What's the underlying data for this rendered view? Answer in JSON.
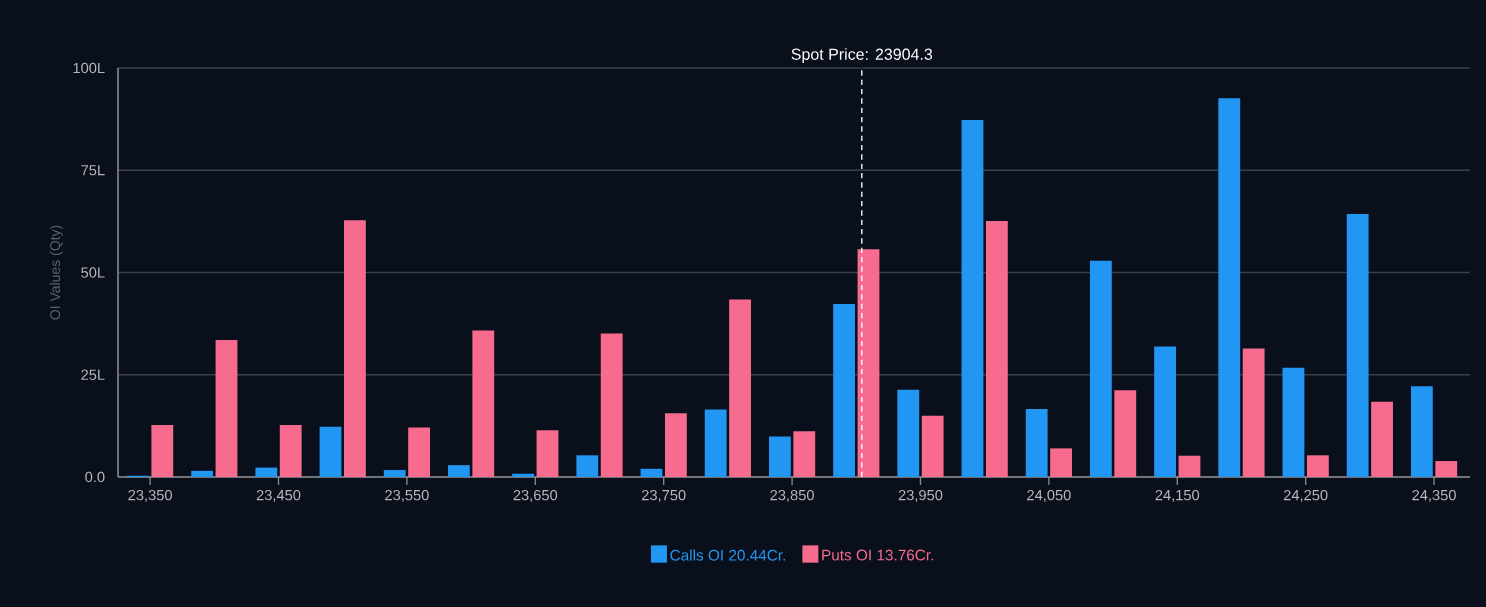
{
  "chart_data": {
    "type": "bar",
    "ylabel": "OI Values (Qty)",
    "x": [
      23350,
      23400,
      23450,
      23500,
      23550,
      23600,
      23650,
      23700,
      23750,
      23800,
      23850,
      23900,
      23950,
      24000,
      24050,
      24100,
      24150,
      24200,
      24250,
      24300,
      24350
    ],
    "series": [
      {
        "name": "Calls OI 20.44Cr.",
        "color": "#2196f3",
        "values": [
          0.3,
          1.5,
          2.3,
          12.3,
          1.7,
          2.9,
          0.8,
          5.3,
          2.0,
          16.5,
          9.9,
          42.3,
          21.3,
          87.3,
          16.6,
          52.9,
          31.9,
          92.6,
          26.7,
          64.3,
          22.2
        ]
      },
      {
        "name": "Puts OI 13.76Cr.",
        "color": "#f76b8f",
        "values": [
          12.7,
          33.5,
          12.7,
          62.8,
          12.1,
          35.8,
          11.4,
          35.1,
          15.6,
          43.4,
          11.2,
          55.7,
          15.0,
          62.6,
          7.0,
          21.2,
          5.2,
          31.4,
          5.3,
          18.4,
          3.9
        ]
      }
    ],
    "xlim": [
      23325,
      24378
    ],
    "xticks": [
      {
        "value": 23350,
        "label": "23,350"
      },
      {
        "value": 23450,
        "label": "23,450"
      },
      {
        "value": 23550,
        "label": "23,550"
      },
      {
        "value": 23650,
        "label": "23,650"
      },
      {
        "value": 23750,
        "label": "23,750"
      },
      {
        "value": 23850,
        "label": "23,850"
      },
      {
        "value": 23950,
        "label": "23,950"
      },
      {
        "value": 24050,
        "label": "24,050"
      },
      {
        "value": 24150,
        "label": "24,150"
      },
      {
        "value": 24250,
        "label": "24,250"
      },
      {
        "value": 24350,
        "label": "24,350"
      }
    ],
    "ylim": [
      0,
      100
    ],
    "yticks": [
      {
        "value": 0,
        "label": "0.0"
      },
      {
        "value": 25,
        "label": "25L"
      },
      {
        "value": 50,
        "label": "50L"
      },
      {
        "value": 75,
        "label": "75L"
      },
      {
        "value": 100,
        "label": "100L"
      }
    ],
    "ref_lines": [
      {
        "axis": "x",
        "value": 23904.3,
        "label": "Spot Price: 23904.3",
        "color": "#ffffff",
        "line_style": "dashed"
      }
    ],
    "grid": "y",
    "legend": "bottom"
  }
}
